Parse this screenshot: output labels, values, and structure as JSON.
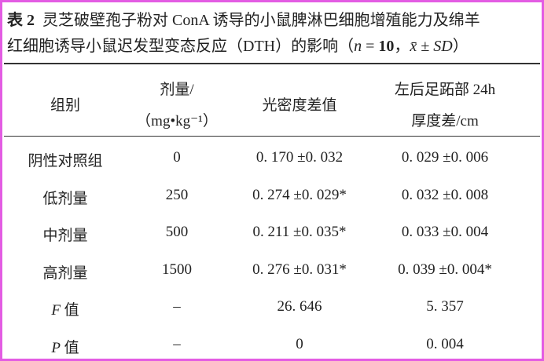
{
  "caption": {
    "label": "表 2",
    "line1": "灵芝破壁孢子粉对 ConA 诱导的小鼠脾淋巴细胞增殖能力及绵羊",
    "line2": "红细胞诱导小鼠迟发型变态反应（DTH）的影响（",
    "n_symbol": "n",
    "equals": " = ",
    "n_value": "10",
    "separator": "，",
    "statistic": "x̄ ± SD",
    "close": "）"
  },
  "table": {
    "header": [
      "组别",
      [
        "剂量/",
        "（mg•kg⁻¹）"
      ],
      "光密度差值",
      [
        "左后足跖部 24h",
        "厚度差/cm"
      ]
    ],
    "rows": [
      [
        "阴性对照组",
        "0",
        "0. 170 ±0. 032",
        "0. 029 ±0. 006"
      ],
      [
        "低剂量",
        "250",
        "0. 274 ±0. 029*",
        "0. 032 ±0. 008"
      ],
      [
        "中剂量",
        "500",
        "0. 211 ±0. 035*",
        "0. 033 ±0. 004"
      ],
      [
        "高剂量",
        "1500",
        "0. 276 ±0. 031*",
        "0. 039 ±0. 004*"
      ],
      [
        {
          "symbol": "F",
          "text": " 值"
        },
        "–",
        "26. 646",
        "5. 357"
      ],
      [
        {
          "symbol": "P",
          "text": " 值"
        },
        "–",
        "0",
        "0. 004"
      ]
    ]
  }
}
